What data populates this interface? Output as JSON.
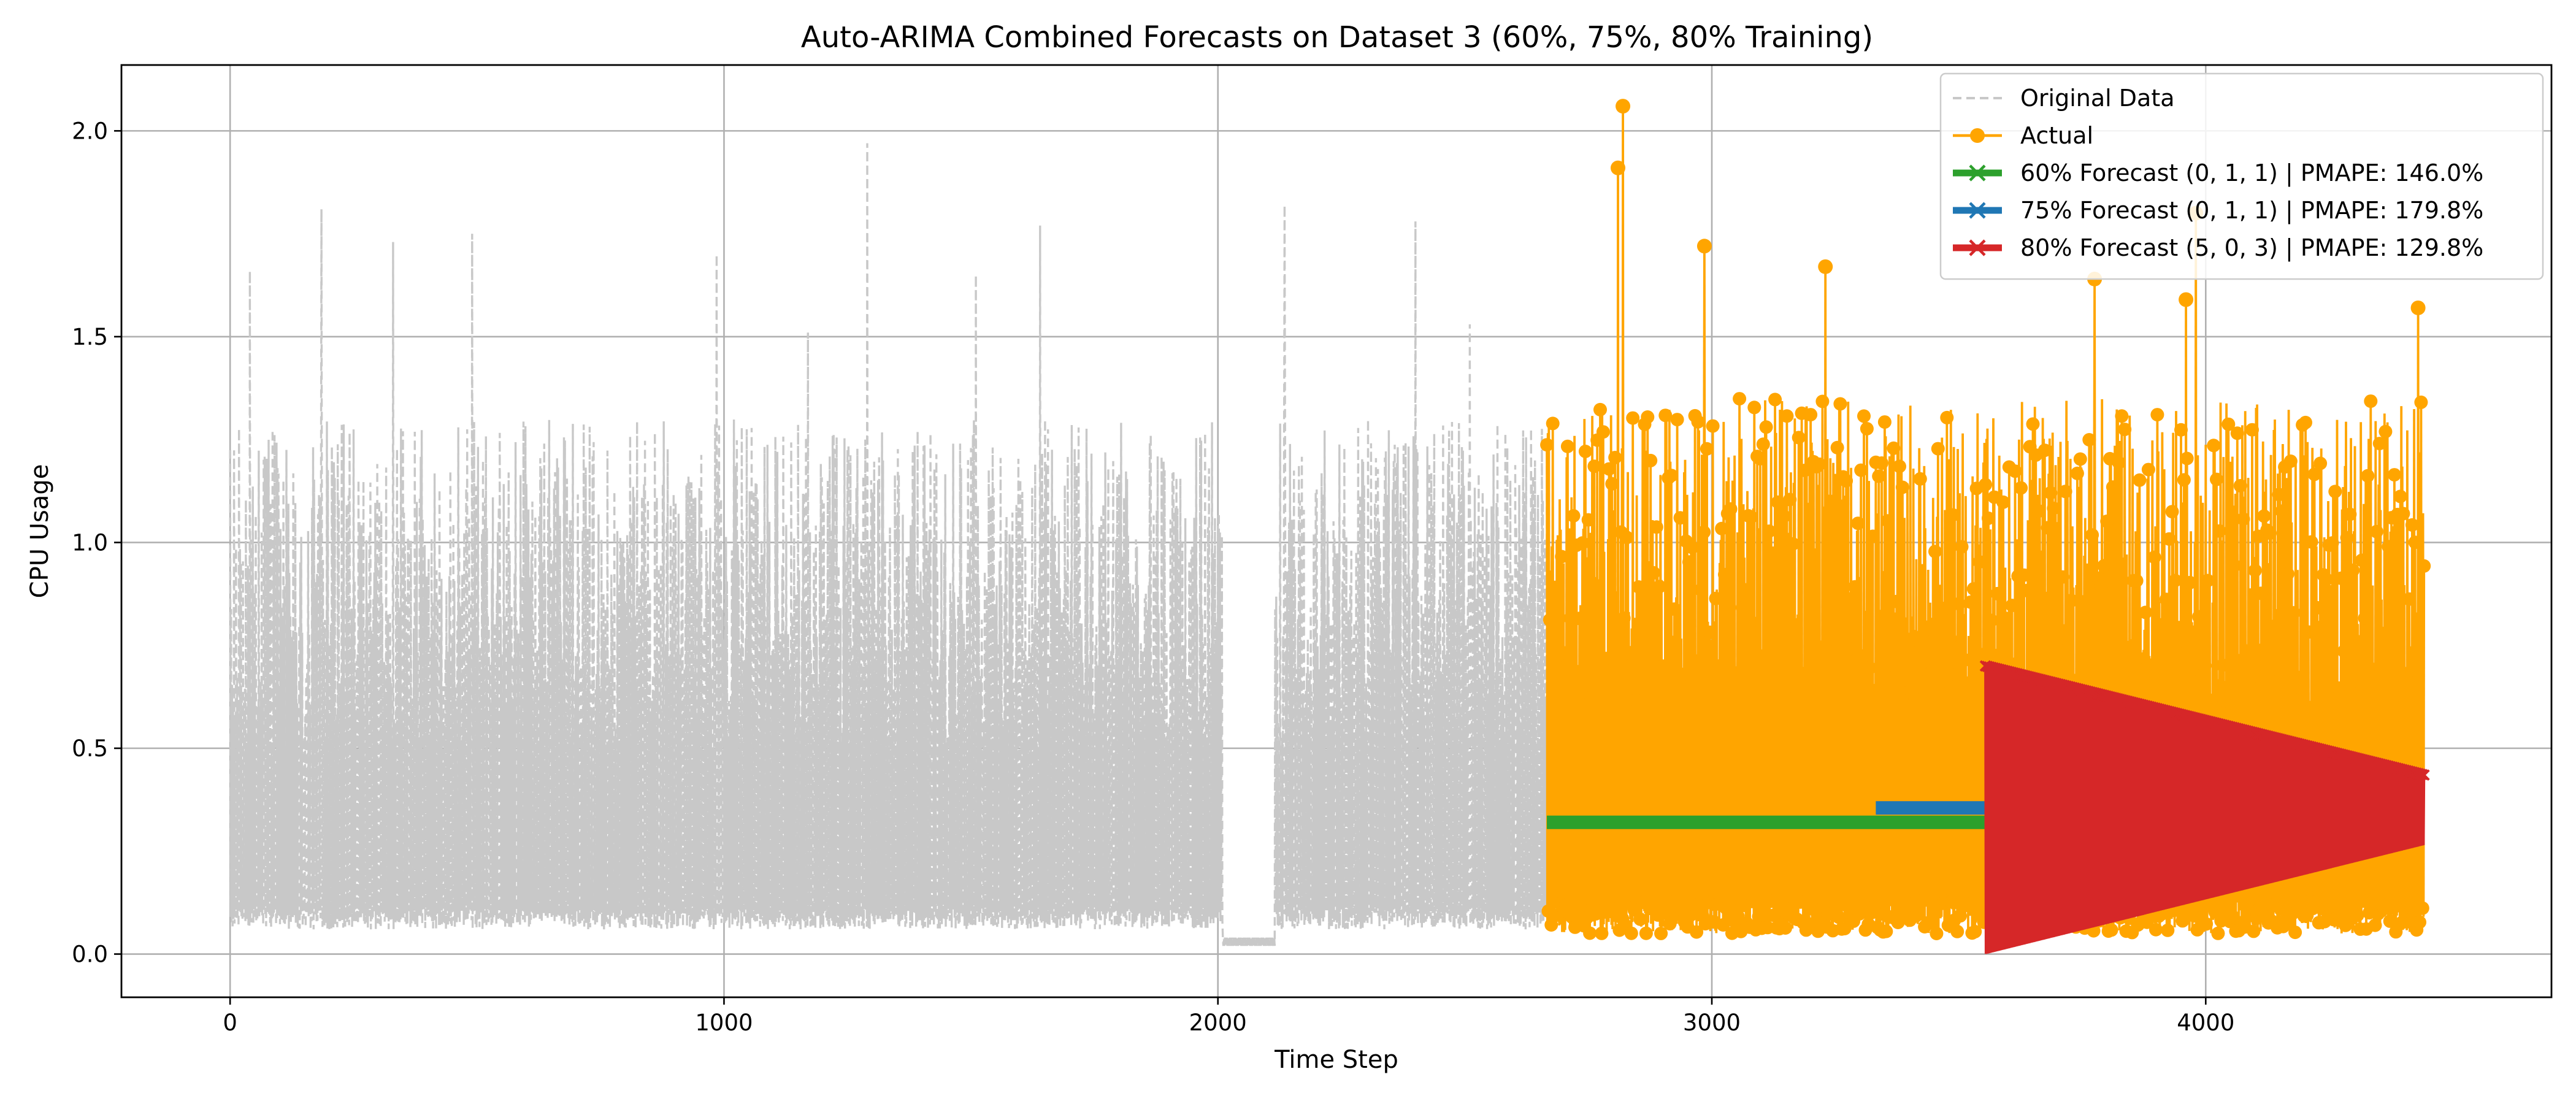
{
  "chart_data": {
    "type": "line",
    "title": "Auto-ARIMA Combined Forecasts on Dataset 3 (60%, 75%, 80% Training)",
    "xlabel": "Time Step",
    "ylabel": "CPU Usage",
    "xlim": [
      -220,
      4700
    ],
    "ylim": [
      -0.105,
      2.16
    ],
    "xticks": [
      0,
      1000,
      2000,
      3000,
      4000
    ],
    "xtick_labels": [
      "0",
      "1000",
      "2000",
      "3000",
      "4000"
    ],
    "yticks": [
      0.0,
      0.5,
      1.0,
      1.5,
      2.0
    ],
    "ytick_labels": [
      "0.0",
      "0.5",
      "1.0",
      "1.5",
      "2.0"
    ],
    "grid": true,
    "legend_position": "top-right",
    "total_points": 4443,
    "series": [
      {
        "name": "Original Data",
        "color": "#c8c8c8",
        "style": "dashed",
        "x_range": [
          0,
          4442
        ],
        "y_min": 0.02,
        "y_max": 2.06
      },
      {
        "name": "Actual",
        "color": "#ffa500",
        "style": "solid",
        "marker": "circle",
        "x_range": [
          2666,
          4442
        ],
        "labeled_peaks": [
          {
            "x": 2820,
            "y": 2.06
          },
          {
            "x": 2810,
            "y": 1.91
          },
          {
            "x": 2985,
            "y": 1.72
          },
          {
            "x": 3980,
            "y": 1.8
          },
          {
            "x": 3960,
            "y": 1.59
          },
          {
            "x": 4430,
            "y": 1.57
          },
          {
            "x": 3230,
            "y": 1.67
          },
          {
            "x": 3775,
            "y": 1.64
          }
        ],
        "y_min": 0.05
      },
      {
        "name": "60% Forecast (0, 1, 1) | PMAPE: 146.0%",
        "color": "#2ca02c",
        "style": "solid",
        "marker": "x",
        "x_range": [
          2666,
          4442
        ],
        "level": 0.32
      },
      {
        "name": "75% Forecast (0, 1, 1) | PMAPE: 179.8%",
        "color": "#1f77b4",
        "style": "solid",
        "marker": "x",
        "x_range": [
          3332,
          4442
        ],
        "level": 0.355
      },
      {
        "name": "80% Forecast (5, 0, 3) | PMAPE: 129.8%",
        "color": "#d62728",
        "style": "solid",
        "marker": "x",
        "x_range": [
          3554,
          4442
        ],
        "center": 0.35,
        "initial_amplitude": 0.35,
        "final_amplitude": 0.085
      }
    ]
  }
}
